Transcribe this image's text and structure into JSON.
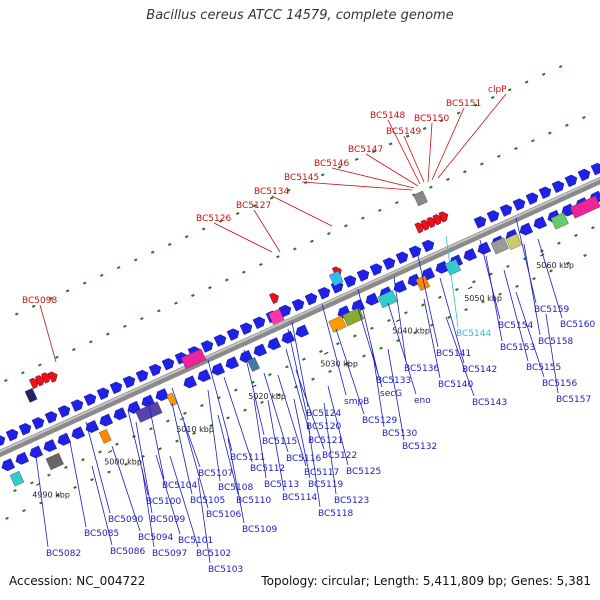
{
  "title": "Bacillus cereus ATCC 14579, complete genome",
  "accession_text": "Accession: NC_004722",
  "summary_text": "Topology: circular; Length: 5,411,809 bp; Genes: 5,381",
  "colors": {
    "forward_arrow": "#1f22e6",
    "reverse_arrow": "#ee1111",
    "backbone": "#8a8a8a",
    "label_blue": "#1c1cc4",
    "label_red": "#cc1111",
    "label_cyan": "#33bbdd",
    "tick": "#1a7a1a"
  },
  "scale": {
    "ticks": [
      {
        "kbp": 4990,
        "label": "4990 kbp"
      },
      {
        "kbp": 5000,
        "label": "5000 kbp"
      },
      {
        "kbp": 5010,
        "label": "5010 kbp"
      },
      {
        "kbp": 5020,
        "label": "5020 kbp"
      },
      {
        "kbp": 5030,
        "label": "5030 kbp"
      },
      {
        "kbp": 5040,
        "label": "5040 kbp"
      },
      {
        "kbp": 5050,
        "label": "5050 kbp"
      },
      {
        "kbp": 5060,
        "label": "5060 kbp"
      }
    ]
  },
  "gene_labels_below": [
    "BC5082",
    "BC5085",
    "BC5086",
    "BC5090",
    "BC5094",
    "BC5097",
    "BC5099",
    "BC5100",
    "BC5101",
    "BC5102",
    "BC5103",
    "BC5104",
    "BC5105",
    "BC5106",
    "BC5107",
    "BC5108",
    "BC5109",
    "BC5110",
    "BC5111",
    "BC5112",
    "BC5113",
    "BC5114",
    "BC5115",
    "BC5116",
    "BC5117",
    "BC5118",
    "BC5119",
    "BC5120",
    "BC5121",
    "BC5122",
    "BC5123",
    "BC5124",
    "BC5125",
    "smpB",
    "BC5129",
    "BC5130",
    "BC5132",
    "BC5133",
    "secG",
    "eno",
    "BC5136",
    "BC5140",
    "BC5141",
    "BC5142",
    "BC5143",
    "BC5144",
    "BC5153",
    "BC5154",
    "BC5155",
    "BC5156",
    "BC5157",
    "BC5158",
    "BC5159",
    "BC5160"
  ],
  "gene_labels_above": [
    "BC5098",
    "BC5126",
    "BC5127",
    "BC5134",
    "BC5145",
    "BC5146",
    "BC5147",
    "BC5148",
    "BC5149",
    "BC5150",
    "BC5151",
    "clpP"
  ]
}
